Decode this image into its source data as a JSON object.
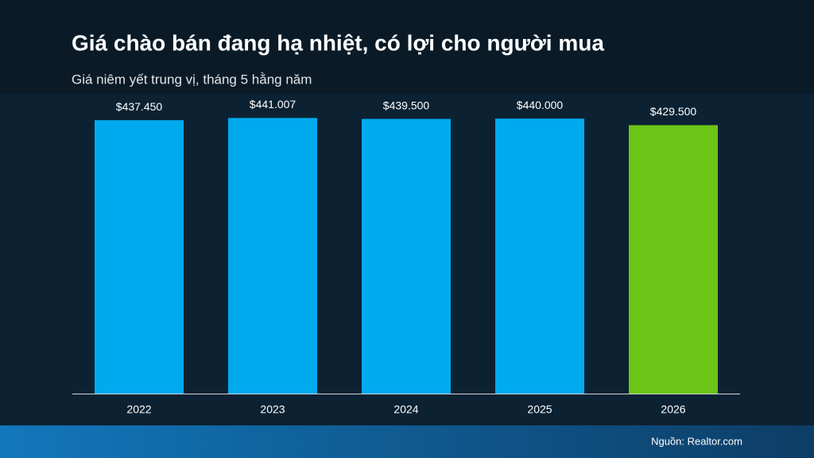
{
  "chart_data": {
    "type": "bar",
    "title": "Giá chào bán đang hạ nhiệt, có lợi cho người mua",
    "subtitle": "Giá niêm yết trung vị, tháng 5 hằng năm",
    "categories": [
      "2022",
      "2023",
      "2024",
      "2025",
      "2026"
    ],
    "values": [
      437450,
      441007,
      439500,
      440000,
      429500
    ],
    "value_labels": [
      "$437.450",
      "$441.007",
      "$439.500",
      "$440.000",
      "$429.500"
    ],
    "colors": [
      "#00aaee",
      "#00aaee",
      "#00aaee",
      "#00aaee",
      "#6cc417"
    ],
    "ylim": [
      0,
      500000
    ],
    "source": "Nguồn: Realtor.com"
  }
}
